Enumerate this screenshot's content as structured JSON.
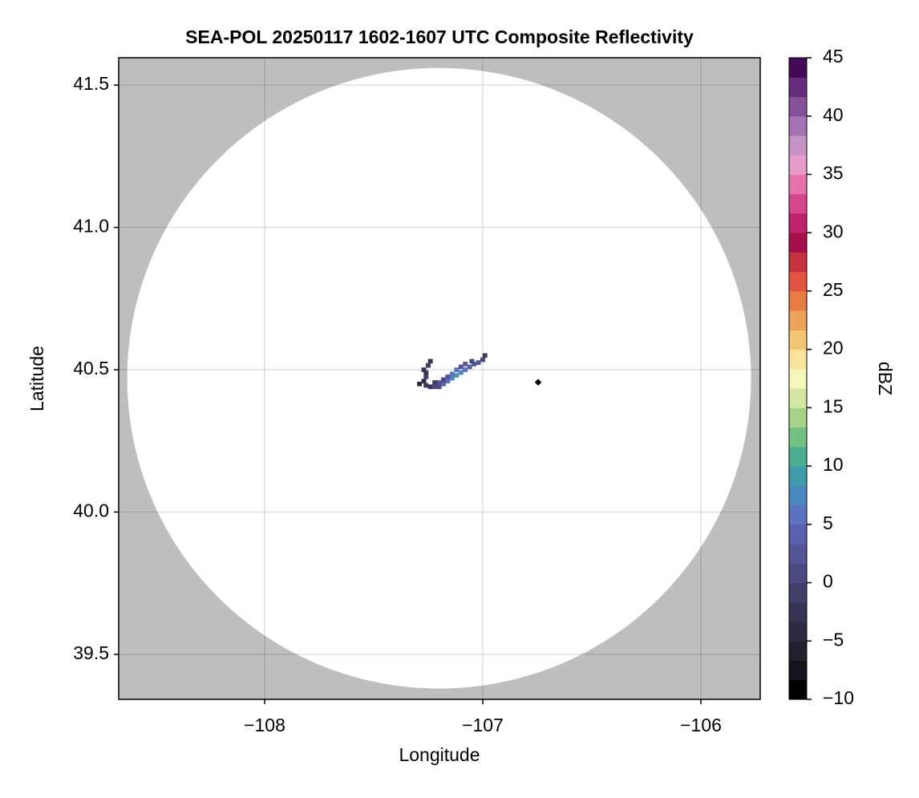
{
  "chart_data": {
    "type": "heatmap",
    "title": "SEA-POL 20250117 1602-1607 UTC Composite Reflectivity",
    "xlabel": "Longitude",
    "ylabel": "Latitude",
    "colorbar_label": "dBZ",
    "xlim": [
      -108.669,
      -105.728
    ],
    "ylim": [
      39.342,
      41.596
    ],
    "xticks": [
      {
        "value": -108,
        "label": "−108"
      },
      {
        "value": -107,
        "label": "−107"
      },
      {
        "value": -106,
        "label": "−106"
      }
    ],
    "yticks": [
      39.5,
      {
        "value": 40.0,
        "label": "40.0"
      },
      40.5,
      {
        "value": 41.0,
        "label": "41.0"
      },
      41.5
    ],
    "grid": true,
    "background_color": "#bebebe",
    "coverage": {
      "center_lon": -107.2,
      "center_lat": 40.47,
      "range_lon": 1.43,
      "range_lat": 1.09,
      "color": "#ffffff"
    },
    "marker": {
      "lon": -106.746,
      "lat": 40.456,
      "color": "#000000"
    },
    "clim": [
      -10,
      45
    ],
    "cticks": [
      {
        "value": -10,
        "label": "−10"
      },
      {
        "value": -5,
        "label": "−5"
      },
      0,
      5,
      10,
      15,
      20,
      25,
      30,
      35,
      40,
      45
    ],
    "colormap": [
      "#000000",
      "#15141c",
      "#21202f",
      "#2c2a42",
      "#373555",
      "#413f6a",
      "#4b4a80",
      "#545596",
      "#5a60ae",
      "#5a72c0",
      "#4a88c0",
      "#3f9cab",
      "#4aaf92",
      "#72c082",
      "#a6d287",
      "#d3e6a2",
      "#f6f6b8",
      "#f7e39a",
      "#f0c673",
      "#eca257",
      "#e97b43",
      "#e15440",
      "#c8323f",
      "#a6104a",
      "#c0206c",
      "#d8458f",
      "#e672ad",
      "#e79bc8",
      "#c692c8",
      "#a673b2",
      "#86509a",
      "#662c7e",
      "#430a5a"
    ],
    "lon": [
      -107.24,
      -107.22,
      -107.2,
      -107.2,
      -107.18,
      -107.16,
      -107.14,
      -107.12,
      -107.1,
      -107.08,
      -107.06,
      -107.04,
      -107.02,
      -107.0,
      -107.14,
      -107.12,
      -107.1,
      -107.16,
      -107.18,
      -107.08,
      -107.05,
      -106.99,
      -107.22,
      -107.27,
      -107.26,
      -107.25,
      -107.24,
      -107.27,
      -107.26,
      -107.29,
      -107.26
    ],
    "lat": [
      40.44,
      40.44,
      40.44,
      40.455,
      40.45,
      40.46,
      40.47,
      40.48,
      40.49,
      40.5,
      40.51,
      40.52,
      40.525,
      40.535,
      40.485,
      40.5,
      40.51,
      40.475,
      40.465,
      40.52,
      40.53,
      40.55,
      40.455,
      40.5,
      40.49,
      40.515,
      40.53,
      40.46,
      40.445,
      40.45,
      40.475
    ],
    "values": [
      -2,
      0,
      1,
      3,
      4,
      6,
      8,
      9,
      7,
      5,
      4,
      3,
      2,
      1,
      5,
      6,
      3,
      2,
      1,
      2,
      0,
      -1,
      -1,
      -3,
      -2,
      -1,
      -3,
      -4,
      -2,
      -5,
      -1
    ]
  }
}
